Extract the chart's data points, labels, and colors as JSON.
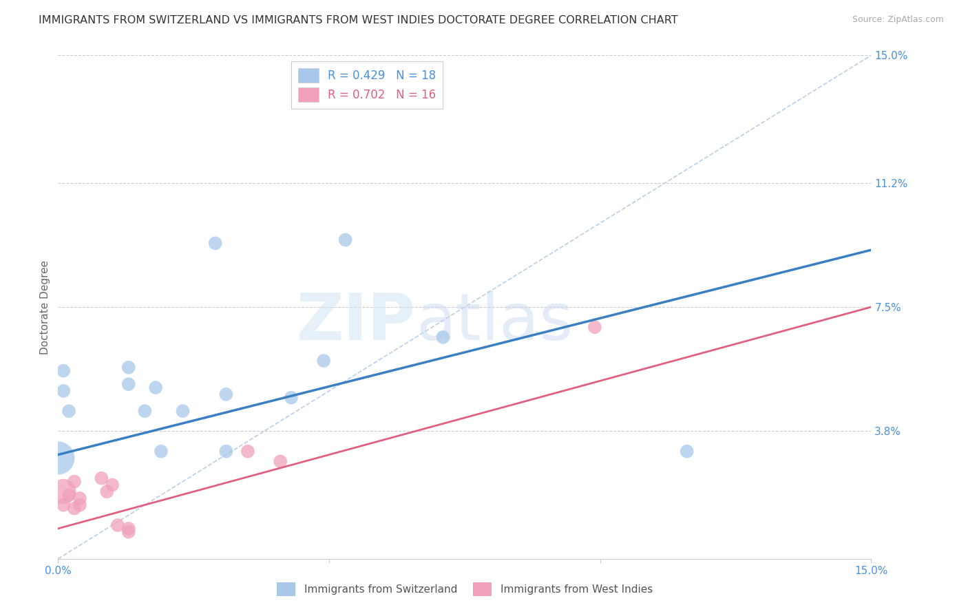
{
  "title": "IMMIGRANTS FROM SWITZERLAND VS IMMIGRANTS FROM WEST INDIES DOCTORATE DEGREE CORRELATION CHART",
  "source": "Source: ZipAtlas.com",
  "ylabel": "Doctorate Degree",
  "xlim": [
    0.0,
    0.15
  ],
  "ylim": [
    0.0,
    0.15
  ],
  "ytick_labels_right": [
    "15.0%",
    "11.2%",
    "7.5%",
    "3.8%"
  ],
  "ytick_positions_right": [
    0.15,
    0.112,
    0.075,
    0.038
  ],
  "switzerland_points": [
    [
      0.001,
      0.056
    ],
    [
      0.001,
      0.05
    ],
    [
      0.002,
      0.044
    ],
    [
      0.0,
      0.03
    ],
    [
      0.013,
      0.057
    ],
    [
      0.013,
      0.052
    ],
    [
      0.018,
      0.051
    ],
    [
      0.016,
      0.044
    ],
    [
      0.019,
      0.032
    ],
    [
      0.023,
      0.044
    ],
    [
      0.031,
      0.049
    ],
    [
      0.031,
      0.032
    ],
    [
      0.043,
      0.048
    ],
    [
      0.049,
      0.059
    ],
    [
      0.071,
      0.066
    ],
    [
      0.029,
      0.094
    ],
    [
      0.053,
      0.095
    ],
    [
      0.116,
      0.032
    ]
  ],
  "switzerland_sizes": [
    200,
    200,
    200,
    1200,
    200,
    200,
    200,
    200,
    200,
    200,
    200,
    200,
    200,
    200,
    200,
    200,
    200,
    200
  ],
  "west_indies_points": [
    [
      0.001,
      0.02
    ],
    [
      0.001,
      0.016
    ],
    [
      0.002,
      0.019
    ],
    [
      0.003,
      0.015
    ],
    [
      0.003,
      0.023
    ],
    [
      0.004,
      0.016
    ],
    [
      0.004,
      0.018
    ],
    [
      0.008,
      0.024
    ],
    [
      0.009,
      0.02
    ],
    [
      0.01,
      0.022
    ],
    [
      0.011,
      0.01
    ],
    [
      0.013,
      0.009
    ],
    [
      0.013,
      0.008
    ],
    [
      0.035,
      0.032
    ],
    [
      0.041,
      0.029
    ],
    [
      0.099,
      0.069
    ]
  ],
  "west_indies_sizes": [
    700,
    200,
    200,
    200,
    200,
    200,
    200,
    200,
    200,
    200,
    200,
    200,
    200,
    200,
    200,
    200
  ],
  "sw_line_x": [
    0.0,
    0.15
  ],
  "sw_line_y": [
    0.031,
    0.092
  ],
  "wi_line_x": [
    0.0,
    0.15
  ],
  "wi_line_y": [
    0.009,
    0.075
  ],
  "blue_line_color": "#3a7fc1",
  "pink_line_color": "#e06080",
  "dashed_line_color": "#b8cfe8",
  "scatter_blue": "#a8c8ea",
  "scatter_pink": "#f0a0b8",
  "background_color": "#ffffff",
  "title_fontsize": 11.5,
  "source_fontsize": 9,
  "legend_r1": "R = 0.429   N = 18",
  "legend_r2": "R = 0.702   N = 16",
  "legend_color1": "#4a90d9",
  "legend_color2": "#e06080",
  "bottom_label1": "Immigrants from Switzerland",
  "bottom_label2": "Immigrants from West Indies"
}
